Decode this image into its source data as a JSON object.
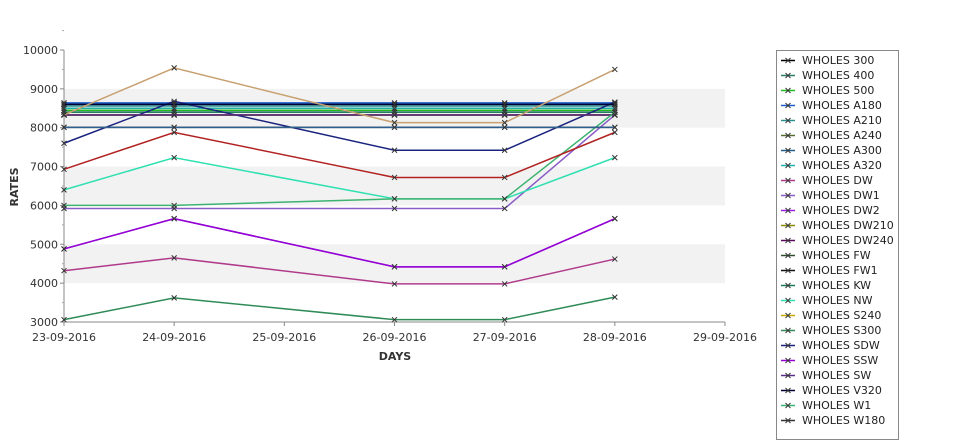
{
  "chart_data": {
    "type": "line",
    "xlabel": "DAYS",
    "ylabel": "RATES",
    "x_ticks": [
      "23-09-2016",
      "24-09-2016",
      "25-09-2016",
      "26-09-2016",
      "27-09-2016",
      "28-09-2016",
      "29-09-2016"
    ],
    "x": [
      "23-09-2016",
      "24-09-2016",
      "26-09-2016",
      "27-09-2016",
      "28-09-2016"
    ],
    "ylim": [
      3000,
      10000
    ],
    "y_ticks": [
      "3000",
      "4000",
      "5000",
      "6000",
      "7000",
      "8000",
      "9000",
      "10000"
    ],
    "grid": "horizontal bands",
    "legend_position": "right",
    "series": [
      {
        "name": "WHOLES 300",
        "color": "#000000",
        "values": [
          8330,
          8330,
          8330,
          8330,
          8330
        ]
      },
      {
        "name": "WHOLES 400",
        "color": "#2e7d6b",
        "values": [
          8400,
          8400,
          8400,
          8400,
          8400
        ]
      },
      {
        "name": "WHOLES 500",
        "color": "#22bb22",
        "values": [
          8450,
          8450,
          8450,
          8450,
          8450
        ]
      },
      {
        "name": "WHOLES A180",
        "color": "#1e5fcf",
        "values": [
          8640,
          8640,
          8640,
          8640,
          8640
        ]
      },
      {
        "name": "WHOLES A210",
        "color": "#2a8f8f",
        "values": [
          8560,
          8560,
          8560,
          8560,
          8560
        ]
      },
      {
        "name": "WHOLES A240",
        "color": "#556b2f",
        "values": [
          8330,
          8330,
          8330,
          8330,
          8330
        ]
      },
      {
        "name": "WHOLES A300",
        "color": "#1f5f8b",
        "values": [
          8600,
          8600,
          8600,
          8600,
          8600
        ]
      },
      {
        "name": "WHOLES A320",
        "color": "#20b2aa",
        "values": [
          8500,
          8500,
          8500,
          8500,
          8500
        ]
      },
      {
        "name": "WHOLES DW",
        "color": "#b03a8a",
        "values": [
          4320,
          4650,
          3980,
          3980,
          4620
        ]
      },
      {
        "name": "WHOLES DW1",
        "color": "#8a5cc8",
        "values": [
          5920,
          5920,
          5920,
          5920,
          8330
        ]
      },
      {
        "name": "WHOLES DW2",
        "color": "#9b1fe0",
        "values": [
          4880,
          5660,
          4420,
          4420,
          5660
        ]
      },
      {
        "name": "WHOLES DW210",
        "color": "#8a8a00",
        "values": [
          8330,
          8330,
          8330,
          8330,
          8330
        ]
      },
      {
        "name": "WHOLES DW240",
        "color": "#5a0a5a",
        "values": [
          8330,
          8330,
          8330,
          8330,
          8330
        ]
      },
      {
        "name": "WHOLES FW",
        "color": "#2f4f2f",
        "values": [
          8330,
          8330,
          8330,
          8330,
          8330
        ]
      },
      {
        "name": "WHOLES FW1",
        "color": "#111111",
        "values": [
          8330,
          8330,
          8330,
          8330,
          8330
        ]
      },
      {
        "name": "WHOLES KW",
        "color": "#1b7a5a",
        "values": [
          8400,
          8400,
          8400,
          8400,
          8400
        ]
      },
      {
        "name": "WHOLES NW",
        "color": "#2fe0b0",
        "values": [
          6400,
          7230,
          6170,
          6170,
          7230
        ]
      },
      {
        "name": "WHOLES S240",
        "color": "#c8a800",
        "values": [
          8330,
          8330,
          8330,
          8330,
          8330
        ]
      },
      {
        "name": "WHOLES S300",
        "color": "#2e8b57",
        "values": [
          3060,
          3620,
          3060,
          3060,
          3640
        ]
      },
      {
        "name": "WHOLES SDW",
        "color": "#1a237e",
        "values": [
          7600,
          8680,
          7420,
          7420,
          8660
        ]
      },
      {
        "name": "WHOLES SSW",
        "color": "#9400d3",
        "values": [
          4880,
          5660,
          4420,
          4420,
          5660
        ]
      },
      {
        "name": "WHOLES SW",
        "color": "#5b2c8a",
        "values": [
          8330,
          8330,
          8330,
          8330,
          8330
        ]
      },
      {
        "name": "WHOLES V320",
        "color": "#000033",
        "values": [
          8600,
          8600,
          8600,
          8600,
          8600
        ]
      },
      {
        "name": "WHOLES W1",
        "color": "#3cb371",
        "values": [
          6000,
          6000,
          6170,
          6170,
          8400
        ]
      },
      {
        "name": "WHOLES W180",
        "color": "#333333",
        "values": [
          8010,
          8010,
          8010,
          8010,
          8010
        ]
      },
      {
        "name": "",
        "color": "#c8a070",
        "values": [
          8330,
          9540,
          8130,
          8130,
          9500
        ]
      },
      {
        "name": "",
        "color": "#b22222",
        "values": [
          6930,
          7880,
          6720,
          6720,
          7880
        ]
      },
      {
        "name": "",
        "color": "#2e5e8e",
        "values": [
          8010,
          8010,
          8010,
          8010,
          8010
        ]
      }
    ]
  }
}
